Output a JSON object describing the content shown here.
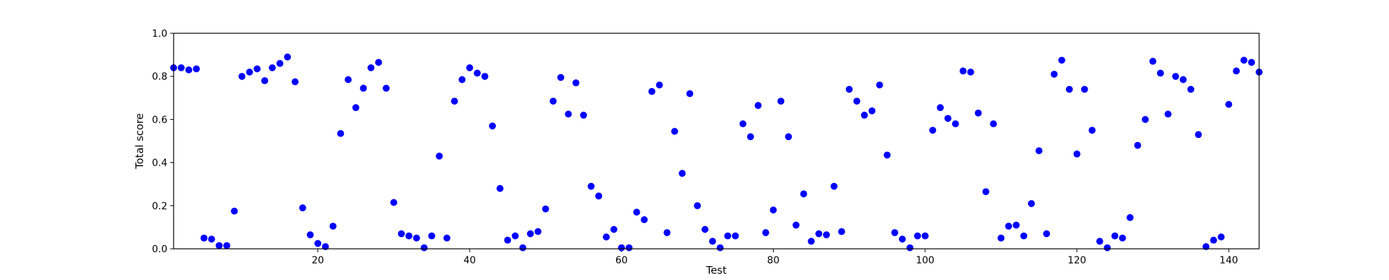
{
  "chart_data": {
    "type": "scatter",
    "title": "",
    "xlabel": "Test",
    "ylabel": "Total score",
    "xlim": [
      1,
      144
    ],
    "ylim": [
      0.0,
      1.0
    ],
    "x_ticks": [
      20,
      40,
      60,
      80,
      100,
      120,
      140
    ],
    "x_tick_labels": [
      "20",
      "40",
      "60",
      "80",
      "100",
      "120",
      "140"
    ],
    "y_ticks": [
      0.0,
      0.2,
      0.4,
      0.6,
      0.8,
      1.0
    ],
    "y_tick_labels": [
      "0.0",
      "0.2",
      "0.4",
      "0.6",
      "0.8",
      "1.0"
    ],
    "grid": false,
    "marker_color": "#0000ff",
    "x": [
      1,
      2,
      3,
      4,
      5,
      6,
      7,
      8,
      9,
      10,
      11,
      12,
      13,
      14,
      15,
      16,
      17,
      18,
      19,
      20,
      21,
      22,
      23,
      24,
      25,
      26,
      27,
      28,
      29,
      30,
      31,
      32,
      33,
      34,
      35,
      36,
      37,
      38,
      39,
      40,
      41,
      42,
      43,
      44,
      45,
      46,
      47,
      48,
      49,
      50,
      51,
      52,
      53,
      54,
      55,
      56,
      57,
      58,
      59,
      60,
      61,
      62,
      63,
      64,
      65,
      66,
      67,
      68,
      69,
      70,
      71,
      72,
      73,
      74,
      75,
      76,
      77,
      78,
      79,
      80,
      81,
      82,
      83,
      84,
      85,
      86,
      87,
      88,
      89,
      90,
      91,
      92,
      93,
      94,
      95,
      96,
      97,
      98,
      99,
      100,
      101,
      102,
      103,
      104,
      105,
      106,
      107,
      108,
      109,
      110,
      111,
      112,
      113,
      114,
      115,
      116,
      117,
      118,
      119,
      120,
      121,
      122,
      123,
      124,
      125,
      126,
      127,
      128,
      129,
      130,
      131,
      132,
      133,
      134,
      135,
      136,
      137,
      138,
      139,
      140,
      141,
      142,
      143,
      144
    ],
    "y": [
      0.84,
      0.84,
      0.83,
      0.835,
      0.05,
      0.045,
      0.015,
      0.015,
      0.175,
      0.8,
      0.82,
      0.835,
      0.78,
      0.84,
      0.86,
      0.89,
      0.775,
      0.19,
      0.065,
      0.025,
      0.01,
      0.105,
      0.535,
      0.785,
      0.655,
      0.745,
      0.84,
      0.865,
      0.745,
      0.215,
      0.07,
      0.06,
      0.05,
      0.005,
      0.06,
      0.43,
      0.05,
      0.685,
      0.785,
      0.84,
      0.815,
      0.8,
      0.57,
      0.28,
      0.04,
      0.06,
      0.005,
      0.07,
      0.08,
      0.185,
      0.685,
      0.795,
      0.625,
      0.77,
      0.62,
      0.29,
      0.245,
      0.055,
      0.09,
      0.005,
      0.005,
      0.17,
      0.135,
      0.73,
      0.76,
      0.075,
      0.545,
      0.35,
      0.72,
      0.2,
      0.09,
      0.035,
      0.005,
      0.06,
      0.06,
      0.58,
      0.52,
      0.665,
      0.075,
      0.18,
      0.685,
      0.52,
      0.11,
      0.255,
      0.035,
      0.07,
      0.065,
      0.29,
      0.08,
      0.74,
      0.685,
      0.62,
      0.64,
      0.76,
      0.435,
      0.075,
      0.045,
      0.005,
      0.06,
      0.06,
      0.55,
      0.655,
      0.605,
      0.58,
      0.825,
      0.82,
      0.63,
      0.265,
      0.58,
      0.05,
      0.105,
      0.11,
      0.06,
      0.21,
      0.455,
      0.07,
      0.81,
      0.875,
      0.74,
      0.44,
      0.74,
      0.55,
      0.035,
      0.005,
      0.06,
      0.05,
      0.145,
      0.48,
      0.6,
      0.87,
      0.815,
      0.625,
      0.8,
      0.785,
      0.74,
      0.53,
      0.01,
      0.04,
      0.055,
      0.67,
      0.825,
      0.875,
      0.865,
      0.82
    ]
  }
}
